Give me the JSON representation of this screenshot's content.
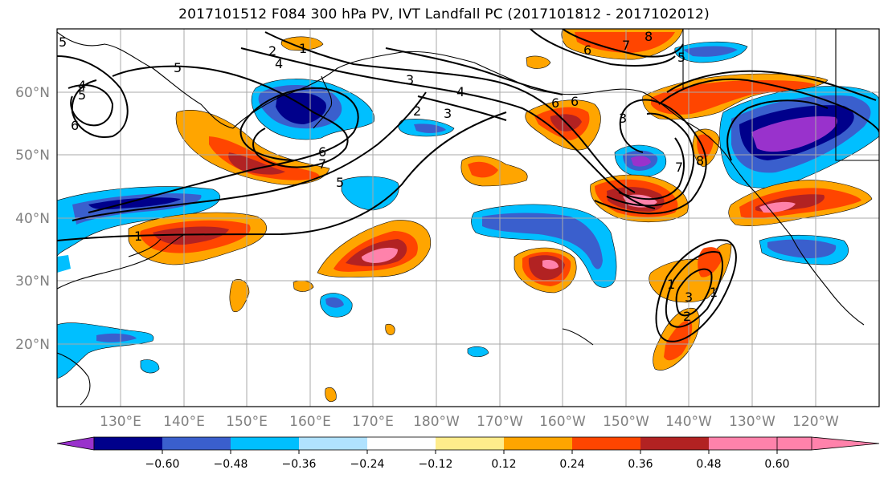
{
  "title": "2017101512 F084 300 hPa PV, IVT Landfall PC (2017101812 - 2017102012)",
  "map": {
    "lat_labels": [
      "60°N",
      "50°N",
      "40°N",
      "30°N",
      "20°N"
    ],
    "lon_labels": [
      "130°E",
      "140°E",
      "150°E",
      "160°E",
      "170°E",
      "180°W",
      "170°W",
      "160°W",
      "150°W",
      "140°W",
      "130°W",
      "120°W"
    ],
    "contour_labels": [
      "5",
      "2",
      "1",
      "4",
      "5",
      "4",
      "5",
      "6",
      "3",
      "4",
      "3",
      "2",
      "6",
      "7",
      "8",
      "6",
      "7",
      "6",
      "3",
      "5",
      "7",
      "8",
      "6",
      "5",
      "1",
      "3",
      "2",
      "1",
      "1"
    ]
  },
  "colorbar": {
    "colors": [
      "#9932cc",
      "#00008b",
      "#3a5fcd",
      "#00bfff",
      "#b0e2ff",
      "#ffffff",
      "#ffec8b",
      "#ffa500",
      "#ff4500",
      "#b22222",
      "#ff82ab"
    ],
    "tick_labels": [
      "−0.60",
      "−0.48",
      "−0.36",
      "−0.24",
      "−0.12",
      "0.12",
      "0.24",
      "0.36",
      "0.48",
      "0.60"
    ]
  }
}
